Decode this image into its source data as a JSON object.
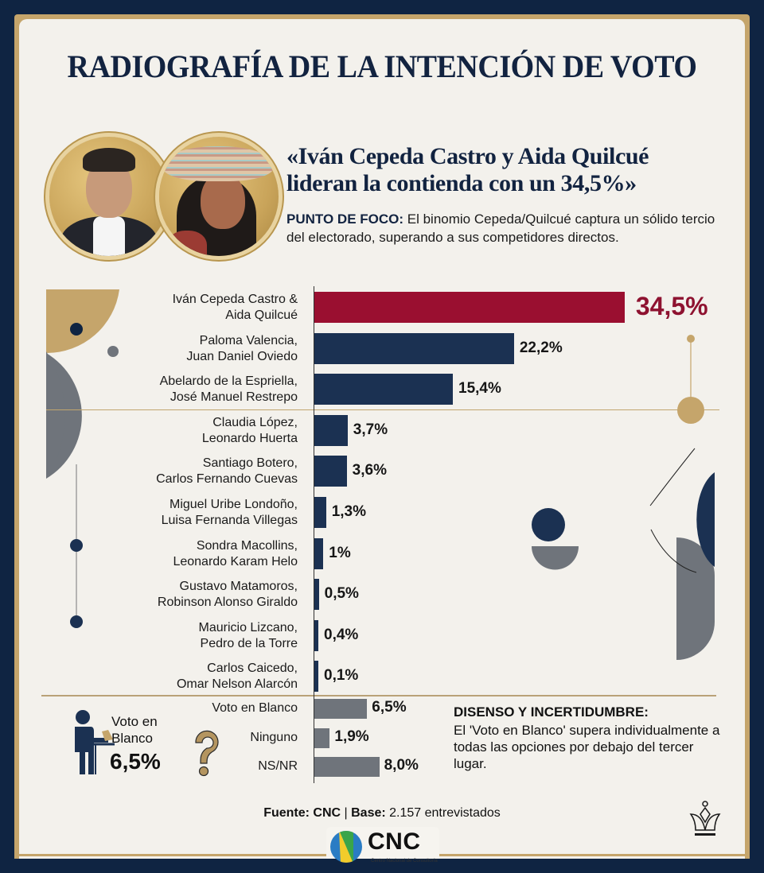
{
  "header": {
    "title": "RADIOGRAFÍA DE LA INTENCIÓN DE VOTO",
    "quote_line1": "«Iván Cepeda Castro y Aida Quilcué",
    "quote_line2": "lideran la contienda con un 34,5%»",
    "focus_label": "PUNTO DE FOCO:",
    "focus_text": " El binomio Cepeda/Quilcué captura un sólido tercio del electorado, superando a sus competidores directos."
  },
  "portraits": [
    {
      "name": "Iván Cepeda Castro"
    },
    {
      "name": "Aida Quilcué"
    }
  ],
  "colors": {
    "lead": "#9a0f30",
    "candidate": "#1b3152",
    "other": "#6f747b",
    "gold": "#c5a56b",
    "navy": "#0f2442"
  },
  "chart_data": {
    "type": "bar",
    "orientation": "horizontal",
    "title": "RADIOGRAFÍA DE LA INTENCIÓN DE VOTO",
    "xlabel": "",
    "ylabel": "",
    "unit": "%",
    "xlim": [
      0,
      35
    ],
    "grid": false,
    "candidates": [
      {
        "line1": "Iván Cepeda Castro &",
        "line2": "Aida Quilcué",
        "value": 34.5,
        "label": "34,5%",
        "lead": true
      },
      {
        "line1": "Paloma Valencia,",
        "line2": "Juan Daniel Oviedo",
        "value": 22.2,
        "label": "22,2%"
      },
      {
        "line1": "Abelardo de la Espriella,",
        "line2": "José Manuel Restrepo",
        "value": 15.4,
        "label": "15,4%"
      },
      {
        "line1": "Claudia López,",
        "line2": "Leonardo Huerta",
        "value": 3.7,
        "label": "3,7%"
      },
      {
        "line1": "Santiago Botero,",
        "line2": "Carlos Fernando Cuevas",
        "value": 3.6,
        "label": "3,6%"
      },
      {
        "line1": "Miguel Uribe Londoño,",
        "line2": "Luisa Fernanda Villegas",
        "value": 1.3,
        "label": "1,3%"
      },
      {
        "line1": "Sondra Macollins,",
        "line2": "Leonardo Karam Helo",
        "value": 1.0,
        "label": "1%"
      },
      {
        "line1": "Gustavo Matamoros,",
        "line2": "Robinson Alonso Giraldo",
        "value": 0.5,
        "label": "0,5%"
      },
      {
        "line1": "Mauricio Lizcano,",
        "line2": "Pedro de la Torre",
        "value": 0.4,
        "label": "0,4%"
      },
      {
        "line1": "Carlos Caicedo,",
        "line2": "Omar Nelson Alarcón",
        "value": 0.1,
        "label": "0,1%"
      }
    ],
    "others": [
      {
        "label_text": "Voto en Blanco",
        "value": 6.5,
        "label": "6,5%"
      },
      {
        "label_text": "Ninguno",
        "value": 1.9,
        "label": "1,9%"
      },
      {
        "label_text": "NS/NR",
        "value": 8.0,
        "label": "8,0%"
      }
    ]
  },
  "blanco_callout": {
    "label_line1": "Voto en",
    "label_line2": "Blanco",
    "value": "6,5%"
  },
  "note": {
    "title": "DISENSO Y INCERTIDUMBRE:",
    "body": "El 'Voto en Blanco' supera individualmente a todas las opciones por debajo del tercer lugar."
  },
  "footer": {
    "source_label": "Fuente: CNC",
    "separator": " | ",
    "base_label": "Base:",
    "base_text": " 2.157 entrevistados",
    "logo_text": "CNC",
    "logo_subtitle": "Centro Nacional de Consultoría"
  }
}
